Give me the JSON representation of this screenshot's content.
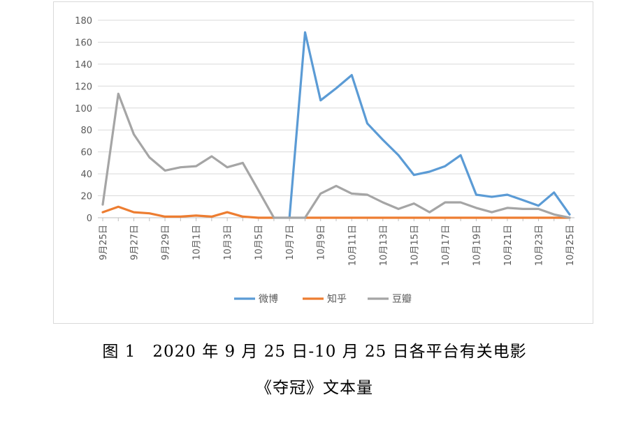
{
  "chart_data": {
    "type": "line",
    "categories": [
      "9月25日",
      "9月26日",
      "9月27日",
      "9月28日",
      "9月29日",
      "9月30日",
      "10月1日",
      "10月2日",
      "10月3日",
      "10月4日",
      "10月5日",
      "10月6日",
      "10月7日",
      "10月8日",
      "10月9日",
      "10月10日",
      "10月11日",
      "10月12日",
      "10月13日",
      "10月14日",
      "10月15日",
      "10月16日",
      "10月17日",
      "10月18日",
      "10月19日",
      "10月20日",
      "10月21日",
      "10月22日",
      "10月23日",
      "10月24日",
      "10月25日"
    ],
    "x_tick_labels": [
      "9月25日",
      "9月27日",
      "9月29日",
      "10月1日",
      "10月3日",
      "10月5日",
      "10月7日",
      "10月9日",
      "10月11日",
      "10月13日",
      "10月15日",
      "10月17日",
      "10月19日",
      "10月21日",
      "10月23日",
      "10月25日"
    ],
    "series": [
      {
        "name": "微博",
        "color": "#5b9bd5",
        "values": [
          null,
          null,
          null,
          null,
          null,
          null,
          null,
          null,
          null,
          null,
          null,
          null,
          0,
          169,
          107,
          118,
          130,
          86,
          71,
          57,
          39,
          42,
          47,
          57,
          21,
          19,
          21,
          16,
          11,
          23,
          3
        ]
      },
      {
        "name": "知乎",
        "color": "#ed7d31",
        "values": [
          5,
          10,
          5,
          4,
          1,
          1,
          2,
          1,
          5,
          1,
          0,
          0,
          null,
          0,
          0,
          0,
          0,
          0,
          0,
          0,
          0,
          0,
          0,
          0,
          0,
          0,
          0,
          0,
          0,
          0,
          0
        ]
      },
      {
        "name": "豆瓣",
        "color": "#a5a5a5",
        "values": [
          12,
          113,
          76,
          55,
          43,
          46,
          47,
          56,
          46,
          50,
          25,
          0,
          0,
          0,
          22,
          29,
          22,
          21,
          14,
          8,
          13,
          5,
          14,
          14,
          9,
          5,
          9,
          8,
          8,
          3,
          0
        ]
      }
    ],
    "ylim": [
      0,
      180
    ],
    "y_ticks": [
      0,
      20,
      40,
      60,
      80,
      100,
      120,
      140,
      160,
      180
    ],
    "grid": true,
    "legend": "bottom",
    "title": "",
    "xlabel": "",
    "ylabel": ""
  },
  "caption": {
    "line1": "图 1　2020 年 9 月 25 日-10 月 25 日各平台有关电影",
    "line2": "《夺冠》文本量"
  }
}
